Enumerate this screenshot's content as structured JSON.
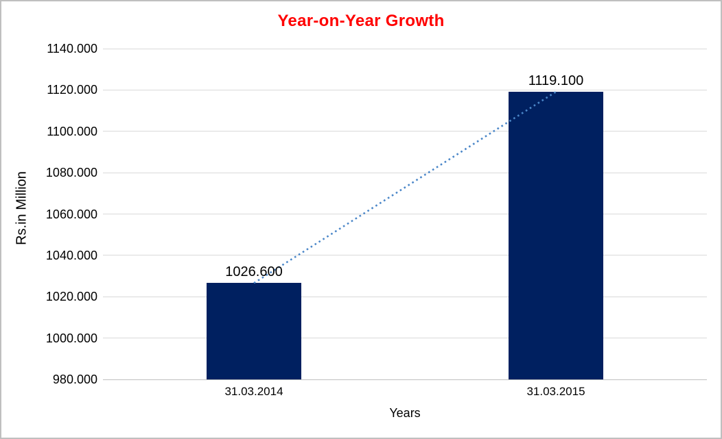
{
  "chart_data": {
    "type": "bar",
    "title": "Year-on-Year Growth",
    "xlabel": "Years",
    "ylabel": "Rs.in Million",
    "categories": [
      "31.03.2014",
      "31.03.2015"
    ],
    "series": [
      {
        "name": "Rs.in Million",
        "values": [
          1026.6,
          1119.1
        ]
      }
    ],
    "data_labels": [
      "1026.600",
      "1119.100"
    ],
    "ylim": [
      980,
      1140
    ],
    "ytick_step": 20,
    "ytick_labels": [
      "980.000",
      "1000.000",
      "1020.000",
      "1040.000",
      "1060.000",
      "1080.000",
      "1100.000",
      "1120.000",
      "1140.000"
    ],
    "grid": true,
    "legend": "none",
    "trendline": {
      "type": "linear",
      "style": "dotted",
      "from_category": "31.03.2014",
      "to_category": "31.03.2015"
    },
    "colors": {
      "title": "#ff0000",
      "bar": "#002060",
      "trendline": "#4a86c8",
      "gridline": "#d9d9d9",
      "axis_line": "#bfbfbf",
      "text": "#000000",
      "frame_border": "#bfbfbf",
      "background": "#ffffff"
    }
  }
}
